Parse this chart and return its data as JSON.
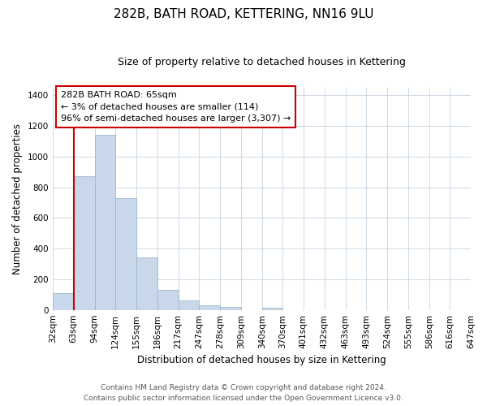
{
  "title": "282B, BATH ROAD, KETTERING, NN16 9LU",
  "subtitle": "Size of property relative to detached houses in Kettering",
  "xlabel": "Distribution of detached houses by size in Kettering",
  "ylabel": "Number of detached properties",
  "bar_edges": [
    32,
    63,
    94,
    124,
    155,
    186,
    217,
    247,
    278,
    309,
    340,
    370,
    401,
    432,
    463,
    493,
    524,
    555,
    586,
    616,
    647
  ],
  "bar_heights": [
    110,
    870,
    1140,
    730,
    345,
    130,
    60,
    30,
    20,
    0,
    15,
    0,
    0,
    0,
    0,
    0,
    0,
    0,
    0,
    0
  ],
  "bar_color": "#c8d8ea",
  "bar_edgecolor": "#9ab8cc",
  "property_line_x": 63,
  "property_line_color": "#cc0000",
  "annotation_text": "282B BATH ROAD: 65sqm\n← 3% of detached houses are smaller (114)\n96% of semi-detached houses are larger (3,307) →",
  "annotation_box_color": "#ffffff",
  "annotation_box_edgecolor": "#cc0000",
  "ylim": [
    0,
    1450
  ],
  "yticks": [
    0,
    200,
    400,
    600,
    800,
    1000,
    1200,
    1400
  ],
  "background_color": "#ffffff",
  "grid_color": "#ccd8e4",
  "footer_line1": "Contains HM Land Registry data © Crown copyright and database right 2024.",
  "footer_line2": "Contains public sector information licensed under the Open Government Licence v3.0.",
  "title_fontsize": 11,
  "subtitle_fontsize": 9,
  "axis_label_fontsize": 8.5,
  "tick_fontsize": 7.5,
  "annotation_fontsize": 8,
  "footer_fontsize": 6.5
}
